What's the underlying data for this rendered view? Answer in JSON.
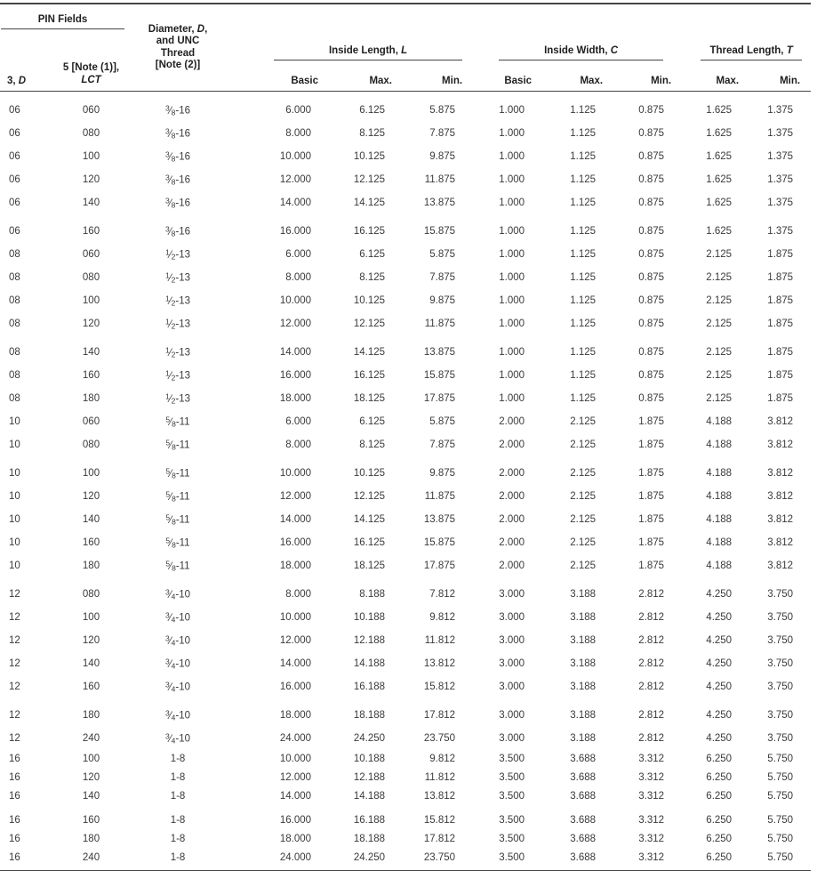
{
  "colors": {
    "background": "#ffffff",
    "rule": "#454545",
    "body_text": "#3a3a3a",
    "header_text": "#1f1f1f"
  },
  "table": {
    "header": {
      "pin_fields": "PIN Fields",
      "pin_col_3d": "3, *D*",
      "pin_col_5_line1": "5 [Note (1)],",
      "pin_col_5_line2": "*LCT*",
      "diameter_lines": [
        "Diameter, *D*,",
        "and UNC",
        "Thread",
        "[Note (2)]"
      ],
      "inside_length": "Inside Length, *L*",
      "inside_width": "Inside Width, *C*",
      "thread_length": "Thread Length, *T*",
      "basic": "Basic",
      "max": "Max.",
      "min": "Min."
    },
    "columns": [
      "pin-3d",
      "pin-5-lct",
      "diameter-unc-thread",
      "length-basic",
      "length-max",
      "length-min",
      "width-basic",
      "width-max",
      "width-min",
      "thread-length-max",
      "thread-length-min"
    ],
    "groups": [
      {
        "rows": [
          [
            "06",
            "060",
            "3/8-16",
            "6.000",
            "6.125",
            "5.875",
            "1.000",
            "1.125",
            "0.875",
            "1.625",
            "1.375"
          ],
          [
            "06",
            "080",
            "3/8-16",
            "8.000",
            "8.125",
            "7.875",
            "1.000",
            "1.125",
            "0.875",
            "1.625",
            "1.375"
          ],
          [
            "06",
            "100",
            "3/8-16",
            "10.000",
            "10.125",
            "9.875",
            "1.000",
            "1.125",
            "0.875",
            "1.625",
            "1.375"
          ],
          [
            "06",
            "120",
            "3/8-16",
            "12.000",
            "12.125",
            "11.875",
            "1.000",
            "1.125",
            "0.875",
            "1.625",
            "1.375"
          ],
          [
            "06",
            "140",
            "3/8-16",
            "14.000",
            "14.125",
            "13.875",
            "1.000",
            "1.125",
            "0.875",
            "1.625",
            "1.375"
          ]
        ]
      },
      {
        "rows": [
          [
            "06",
            "160",
            "3/8-16",
            "16.000",
            "16.125",
            "15.875",
            "1.000",
            "1.125",
            "0.875",
            "1.625",
            "1.375"
          ],
          [
            "08",
            "060",
            "1/2-13",
            "6.000",
            "6.125",
            "5.875",
            "1.000",
            "1.125",
            "0.875",
            "2.125",
            "1.875"
          ],
          [
            "08",
            "080",
            "1/2-13",
            "8.000",
            "8.125",
            "7.875",
            "1.000",
            "1.125",
            "0.875",
            "2.125",
            "1.875"
          ],
          [
            "08",
            "100",
            "1/2-13",
            "10.000",
            "10.125",
            "9.875",
            "1.000",
            "1.125",
            "0.875",
            "2.125",
            "1.875"
          ],
          [
            "08",
            "120",
            "1/2-13",
            "12.000",
            "12.125",
            "11.875",
            "1.000",
            "1.125",
            "0.875",
            "2.125",
            "1.875"
          ]
        ]
      },
      {
        "rows": [
          [
            "08",
            "140",
            "1/2-13",
            "14.000",
            "14.125",
            "13.875",
            "1.000",
            "1.125",
            "0.875",
            "2.125",
            "1.875"
          ],
          [
            "08",
            "160",
            "1/2-13",
            "16.000",
            "16.125",
            "15.875",
            "1.000",
            "1.125",
            "0.875",
            "2.125",
            "1.875"
          ],
          [
            "08",
            "180",
            "1/2-13",
            "18.000",
            "18.125",
            "17.875",
            "1.000",
            "1.125",
            "0.875",
            "2.125",
            "1.875"
          ],
          [
            "10",
            "060",
            "5/8-11",
            "6.000",
            "6.125",
            "5.875",
            "2.000",
            "2.125",
            "1.875",
            "4.188",
            "3.812"
          ],
          [
            "10",
            "080",
            "5/8-11",
            "8.000",
            "8.125",
            "7.875",
            "2.000",
            "2.125",
            "1.875",
            "4.188",
            "3.812"
          ]
        ]
      },
      {
        "rows": [
          [
            "10",
            "100",
            "5/8-11",
            "10.000",
            "10.125",
            "9.875",
            "2.000",
            "2.125",
            "1.875",
            "4.188",
            "3.812"
          ],
          [
            "10",
            "120",
            "5/8-11",
            "12.000",
            "12.125",
            "11.875",
            "2.000",
            "2.125",
            "1.875",
            "4.188",
            "3.812"
          ],
          [
            "10",
            "140",
            "5/8-11",
            "14.000",
            "14.125",
            "13.875",
            "2.000",
            "2.125",
            "1.875",
            "4.188",
            "3.812"
          ],
          [
            "10",
            "160",
            "5/8-11",
            "16.000",
            "16.125",
            "15.875",
            "2.000",
            "2.125",
            "1.875",
            "4.188",
            "3.812"
          ],
          [
            "10",
            "180",
            "5/8-11",
            "18.000",
            "18.125",
            "17.875",
            "2.000",
            "2.125",
            "1.875",
            "4.188",
            "3.812"
          ]
        ]
      },
      {
        "rows": [
          [
            "12",
            "080",
            "3/4-10",
            "8.000",
            "8.188",
            "7.812",
            "3.000",
            "3.188",
            "2.812",
            "4.250",
            "3.750"
          ],
          [
            "12",
            "100",
            "3/4-10",
            "10.000",
            "10.188",
            "9.812",
            "3.000",
            "3.188",
            "2.812",
            "4.250",
            "3.750"
          ],
          [
            "12",
            "120",
            "3/4-10",
            "12.000",
            "12.188",
            "11.812",
            "3.000",
            "3.188",
            "2.812",
            "4.250",
            "3.750"
          ],
          [
            "12",
            "140",
            "3/4-10",
            "14.000",
            "14.188",
            "13.812",
            "3.000",
            "3.188",
            "2.812",
            "4.250",
            "3.750"
          ],
          [
            "12",
            "160",
            "3/4-10",
            "16.000",
            "16.188",
            "15.812",
            "3.000",
            "3.188",
            "2.812",
            "4.250",
            "3.750"
          ]
        ]
      },
      {
        "rows": [
          [
            "12",
            "180",
            "3/4-10",
            "18.000",
            "18.188",
            "17.812",
            "3.000",
            "3.188",
            "2.812",
            "4.250",
            "3.750"
          ],
          [
            "12",
            "240",
            "3/4-10",
            "24.000",
            "24.250",
            "23.750",
            "3.000",
            "3.188",
            "2.812",
            "4.250",
            "3.750"
          ],
          [
            "16",
            "100",
            "1-8",
            "10.000",
            "10.188",
            "9.812",
            "3.500",
            "3.688",
            "3.312",
            "6.250",
            "5.750"
          ],
          [
            "16",
            "120",
            "1-8",
            "12.000",
            "12.188",
            "11.812",
            "3.500",
            "3.688",
            "3.312",
            "6.250",
            "5.750"
          ],
          [
            "16",
            "140",
            "1-8",
            "14.000",
            "14.188",
            "13.812",
            "3.500",
            "3.688",
            "3.312",
            "6.250",
            "5.750"
          ]
        ]
      },
      {
        "rows": [
          [
            "16",
            "160",
            "1-8",
            "16.000",
            "16.188",
            "15.812",
            "3.500",
            "3.688",
            "3.312",
            "6.250",
            "5.750"
          ],
          [
            "16",
            "180",
            "1-8",
            "18.000",
            "18.188",
            "17.812",
            "3.500",
            "3.688",
            "3.312",
            "6.250",
            "5.750"
          ],
          [
            "16",
            "240",
            "1-8",
            "24.000",
            "24.250",
            "23.750",
            "3.500",
            "3.688",
            "3.312",
            "6.250",
            "5.750"
          ]
        ]
      }
    ]
  }
}
